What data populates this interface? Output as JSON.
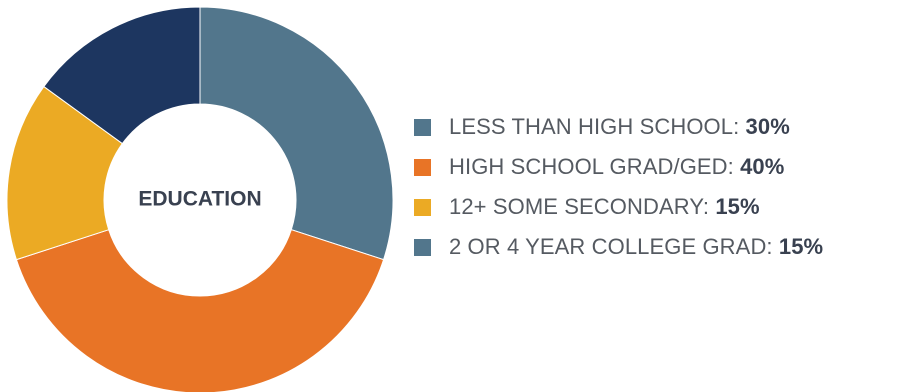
{
  "chart_data": {
    "type": "pie",
    "title": "",
    "center_label": "EDUCATION",
    "categories": [
      "LESS THAN HIGH SCHOOL",
      "HIGH SCHOOL GRAD/GED",
      "12+ SOME SECONDARY",
      "2 OR 4 YEAR COLLEGE GRAD"
    ],
    "values": [
      30,
      40,
      15,
      15
    ],
    "value_labels": [
      "30%",
      "40%",
      "15%",
      "15%"
    ],
    "donut": true,
    "legend_position": "right",
    "legend_swatch_colors": [
      "#52768C",
      "#E87426",
      "#EBAA24",
      "#52768C"
    ],
    "slice_colors": [
      "#52768C",
      "#E87426",
      "#EBAA24",
      "#1D3660"
    ],
    "start_angle": "top",
    "direction": "clockwise"
  },
  "legend": {
    "items": [
      {
        "label": "LESS THAN HIGH SCHOOL: ",
        "value": "30%"
      },
      {
        "label": "HIGH SCHOOL GRAD/GED: ",
        "value": "40%"
      },
      {
        "label": "12+ SOME SECONDARY: ",
        "value": "15%"
      },
      {
        "label": "2 OR 4 YEAR COLLEGE GRAD: ",
        "value": "15%"
      }
    ]
  }
}
